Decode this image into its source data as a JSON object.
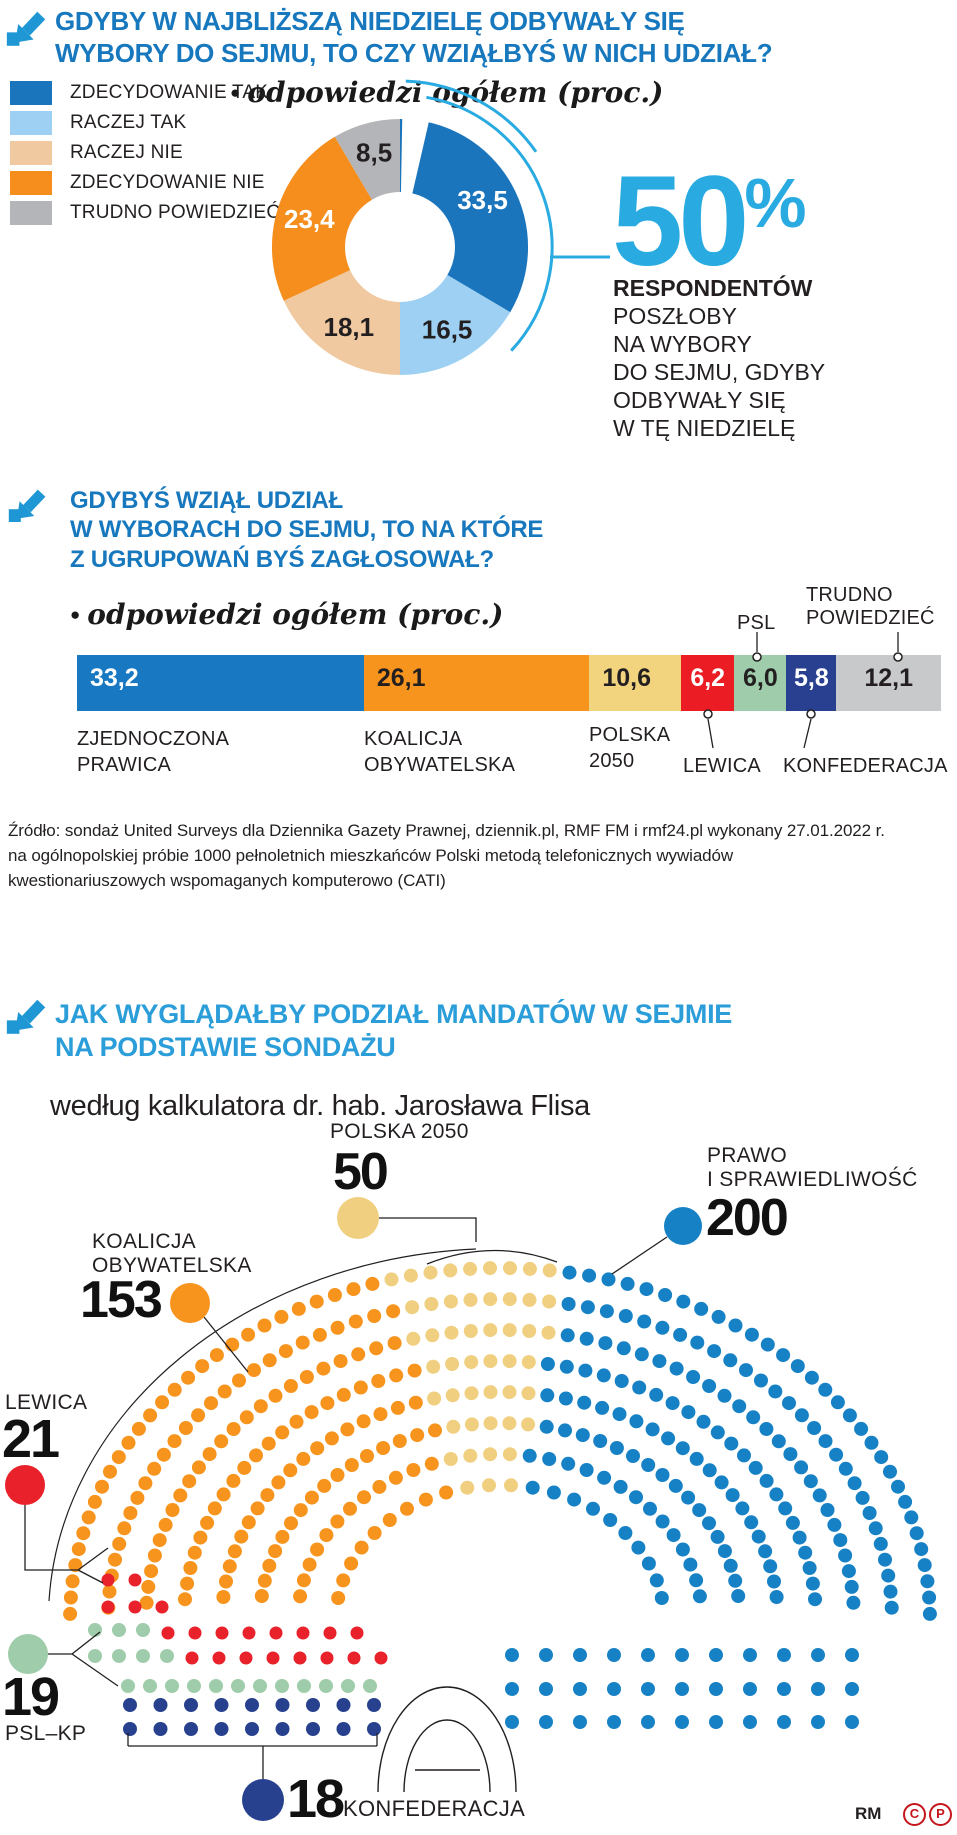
{
  "q1": {
    "heading": "GDYBY W NAJBLIŻSZĄ NIEDZIELĘ ODBYWAŁY SIĘ\nWYBORY DO SEJMU, TO CZY WZIĄŁBYŚ W NICH UDZIAŁ?",
    "bullet": "●",
    "note": "odpowiedzi ogółem (proc.)",
    "legend": [
      {
        "label": "ZDECYDOWANIE TAK",
        "color": "#1B75BC"
      },
      {
        "label": "RACZEJ TAK",
        "color": "#9DD0F2"
      },
      {
        "label": "RACZEJ NIE",
        "color": "#F0C9A0"
      },
      {
        "label": "ZDECYDOWANIE NIE",
        "color": "#F68E1E"
      },
      {
        "label": "TRUDNO POWIEDZIEĆ",
        "color": "#B4B5B8"
      }
    ],
    "donut": {
      "slices": [
        {
          "label": "ZDECYDOWANIE TAK",
          "display": "33,5",
          "value": 33.5,
          "color": "#1B75BC",
          "text": "#FFFFFF"
        },
        {
          "label": "RACZEJ TAK",
          "display": "16,5",
          "value": 16.5,
          "color": "#9DD0F2",
          "text": "#231F20"
        },
        {
          "label": "RACZEJ NIE",
          "display": "18,1",
          "value": 18.1,
          "color": "#F0C9A0",
          "text": "#231F20"
        },
        {
          "label": "ZDECYDOWANIE NIE",
          "display": "23,4",
          "value": 23.4,
          "color": "#F68E1E",
          "text": "#FFFFFF"
        },
        {
          "label": "TRUDNO POWIEDZIEĆ",
          "display": "8,5",
          "value": 8.5,
          "color": "#B4B5B8",
          "text": "#231F20"
        }
      ]
    },
    "highlight": {
      "value": "50",
      "unit": "%",
      "lead": "RESPONDENTÓW",
      "rest": "POSZŁOBY\nNA WYBORY\nDO SEJMU, GDYBY\nODBYWAŁY SIĘ\nW TĘ NIEDZIELĘ"
    }
  },
  "q2": {
    "heading": "GDYBYŚ WZIĄŁ UDZIAŁ\nW WYBORACH DO SEJMU, TO NA KTÓRE\nZ UGRUPOWAŃ BYŚ ZAGŁOSOWAŁ?",
    "bullet": "●",
    "note": "odpowiedzi ogółem (proc.)",
    "bar": {
      "segments": [
        {
          "party": "ZJEDNOCZONA PRAWICA",
          "display": "33,2",
          "value": 33.2,
          "color": "#1878C2",
          "text": "#FFFFFF",
          "align": "left"
        },
        {
          "party": "KOALICJA OBYWATELSKA",
          "display": "26,1",
          "value": 26.1,
          "color": "#F7941E",
          "text": "#231F20",
          "align": "left"
        },
        {
          "party": "POLSKA 2050",
          "display": "10,6",
          "value": 10.6,
          "color": "#F2D47E",
          "text": "#231F20",
          "align": "left"
        },
        {
          "party": "LEWICA",
          "display": "6,2",
          "value": 6.2,
          "color": "#EC1C24",
          "text": "#FFFFFF",
          "align": "center"
        },
        {
          "party": "PSL",
          "display": "6,0",
          "value": 6.0,
          "color": "#9FCDAB",
          "text": "#231F20",
          "align": "center"
        },
        {
          "party": "KONFEDERACJA",
          "display": "5,8",
          "value": 5.8,
          "color": "#28408F",
          "text": "#FFFFFF",
          "align": "center"
        },
        {
          "party": "TRUDNO POWIEDZIEĆ",
          "display": "12,1",
          "value": 12.1,
          "color": "#C8C9CB",
          "text": "#231F20",
          "align": "center"
        }
      ]
    },
    "callouts": {
      "zp": "ZJEDNOCZONA\nPRAWICA",
      "ko": "KOALICJA\nOBYWATELSKA",
      "p2050": "POLSKA\n2050",
      "psl": "PSL",
      "trudno": "TRUDNO\nPOWIEDZIEĆ",
      "lewica": "LEWICA",
      "konfederacja": "KONFEDERACJA"
    }
  },
  "source": {
    "text": "Źródło: sondaż United Surveys dla Dziennika Gazety Prawnej, dziennik.pl, RMF FM i rmf24.pl wykonany 27.01.2022 r.\nna ogólnopolskiej próbie 1000 pełnoletnich mieszkańców Polski metodą telefonicznych wywiadów\nkwestionariuszowych wspomaganych komputerowo (CATI)"
  },
  "q3": {
    "heading": "JAK WYGLĄDAŁBY PODZIAŁ MANDATÓW W SEJMIE\nNA PODSTAWIE SONDAŻU",
    "subheading": "według kalkulatora dr. hab. Jarosława Flisa",
    "parties": [
      {
        "name": "KOALICJA OBYWATELSKA",
        "label": "KOALICJA\nOBYWATELSKA",
        "seats": 153,
        "seats_display": "153",
        "color": "#F7941E"
      },
      {
        "name": "POLSKA 2050",
        "label": "POLSKA 2050",
        "seats": 50,
        "seats_display": "50",
        "color": "#F0D080"
      },
      {
        "name": "PRAWO I SPRAWIEDLIWOŚĆ",
        "label": "PRAWO\nI SPRAWIEDLIWOŚĆ",
        "seats": 200,
        "seats_display": "200",
        "color": "#1781C5"
      },
      {
        "name": "LEWICA",
        "label": "LEWICA",
        "seats": 21,
        "seats_display": "21",
        "color": "#E8212A"
      },
      {
        "name": "PSL–KP",
        "label": "PSL–KP",
        "seats": 19,
        "seats_display": "19",
        "color": "#9FCDAB"
      },
      {
        "name": "KONFEDERACJA",
        "label": "KONFEDERACJA",
        "seats": 18,
        "seats_display": "18",
        "color": "#27418F"
      }
    ],
    "credit": "RM",
    "badges": [
      "C",
      "P"
    ]
  },
  "chart_data": [
    {
      "type": "pie",
      "donut": true,
      "title": "GDYBY W NAJBLIŻSZĄ NIEDZIELĘ ODBYWAŁY SIĘ WYBORY DO SEJMU, TO CZY WZIĄŁBYŚ W NICH UDZIAŁ?",
      "subtitle": "odpowiedzi ogółem (proc.)",
      "labels": [
        "ZDECYDOWANIE TAK",
        "RACZEJ TAK",
        "RACZEJ NIE",
        "ZDECYDOWANIE NIE",
        "TRUDNO POWIEDZIEĆ"
      ],
      "values": [
        33.5,
        16.5,
        18.1,
        23.4,
        8.5
      ],
      "colors": [
        "#1B75BC",
        "#9DD0F2",
        "#F0C9A0",
        "#F68E1E",
        "#B4B5B8"
      ],
      "legend_position": "left",
      "annotation": "50% RESPONDENTÓW POSZŁOBY NA WYBORY DO SEJMU, GDYBY ODBYWAŁY SIĘ W TĘ NIEDZIELĘ"
    },
    {
      "type": "bar",
      "orientation": "horizontal-stacked",
      "title": "GDYBYŚ WZIĄŁ UDZIAŁ W WYBORACH DO SEJMU, TO NA KTÓRE Z UGRUPOWAŃ BYŚ ZAGŁOSOWAŁ?",
      "subtitle": "odpowiedzi ogółem (proc.)",
      "categories": [
        "ZJEDNOCZONA PRAWICA",
        "KOALICJA OBYWATELSKA",
        "POLSKA 2050",
        "LEWICA",
        "PSL",
        "KONFEDERACJA",
        "TRUDNO POWIEDZIEĆ"
      ],
      "values": [
        33.2,
        26.1,
        10.6,
        6.2,
        6.0,
        5.8,
        12.1
      ],
      "colors": [
        "#1878C2",
        "#F7941E",
        "#F2D47E",
        "#EC1C24",
        "#9FCDAB",
        "#28408F",
        "#C8C9CB"
      ],
      "xlim": [
        0,
        100
      ]
    },
    {
      "type": "table",
      "representation": "parliament-hemicycle",
      "title": "JAK WYGLĄDAŁBY PODZIAŁ MANDATÓW W SEJMIE NA PODSTAWIE SONDAŻU",
      "subtitle": "według kalkulatora dr. hab. Jarosława Flisa",
      "categories": [
        "KOALICJA OBYWATELSKA",
        "POLSKA 2050",
        "PRAWO I SPRAWIEDLIWOŚĆ",
        "LEWICA",
        "PSL–KP",
        "KONFEDERACJA"
      ],
      "values": [
        153,
        50,
        200,
        21,
        19,
        18
      ],
      "colors": [
        "#F7941E",
        "#F0D080",
        "#1781C5",
        "#E8212A",
        "#9FCDAB",
        "#27418F"
      ]
    }
  ]
}
